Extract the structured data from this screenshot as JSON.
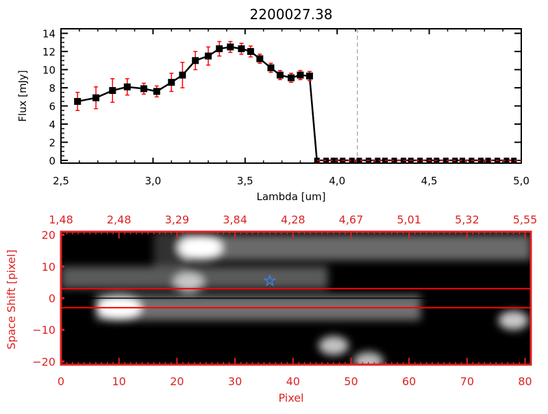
{
  "chart_data": [
    {
      "type": "line",
      "title": "2200027.38",
      "xlabel": "Lambda [um]",
      "ylabel": "Flux [mJy]",
      "xlim": [
        2.5,
        5.0
      ],
      "ylim": [
        -0.3,
        14.5
      ],
      "xticks": [
        "2.5",
        "3.0",
        "3.5",
        "4.0",
        "4.5",
        "5.0"
      ],
      "yticks": [
        "0",
        "2",
        "4",
        "6",
        "8",
        "10",
        "12",
        "14"
      ],
      "series": [
        {
          "color": "#000000",
          "error_color": "#ff0000",
          "x": [
            2.59,
            2.69,
            2.78,
            2.86,
            2.95,
            3.02,
            3.1,
            3.16,
            3.23,
            3.3,
            3.36,
            3.42,
            3.48,
            3.53,
            3.58,
            3.64,
            3.69,
            3.75,
            3.8,
            3.85
          ],
          "y": [
            6.5,
            6.9,
            7.7,
            8.1,
            7.9,
            7.6,
            8.6,
            9.4,
            11.0,
            11.5,
            12.3,
            12.5,
            12.3,
            12.0,
            11.2,
            10.2,
            9.4,
            9.1,
            9.4,
            9.3
          ],
          "err": [
            1.0,
            1.2,
            1.3,
            0.9,
            0.6,
            0.6,
            1.0,
            1.4,
            1.0,
            1.0,
            0.8,
            0.6,
            0.6,
            0.6,
            0.5,
            0.5,
            0.5,
            0.5,
            0.5,
            0.5
          ]
        },
        {
          "color": "#000000",
          "x": [
            3.89,
            3.94,
            3.98,
            4.03,
            4.08,
            4.12,
            4.17,
            4.22,
            4.26,
            4.31,
            4.36,
            4.4,
            4.45,
            4.5,
            4.54,
            4.59,
            4.64,
            4.68,
            4.73,
            4.78,
            4.82,
            4.87,
            4.92,
            4.96
          ],
          "y": [
            0,
            0,
            0,
            0,
            0,
            0,
            0,
            0,
            0,
            0,
            0,
            0,
            0,
            0,
            0,
            0,
            0,
            0,
            0,
            0,
            0,
            0,
            0,
            0
          ]
        }
      ],
      "zero_line": {
        "color": "#ff0000",
        "style": "dashed"
      },
      "vertical_marker": {
        "x": 4.11,
        "style": "dashed",
        "color": "#888888"
      }
    },
    {
      "type": "heatmap",
      "xlabel": "Pixel",
      "ylabel": "Space Shift [pixel]",
      "xlim": [
        0,
        81
      ],
      "ylim": [
        -21,
        21
      ],
      "xticks": [
        "0",
        "10",
        "20",
        "30",
        "40",
        "50",
        "60",
        "70",
        "80"
      ],
      "yticks": [
        "-20",
        "-10",
        "0",
        "10",
        "20"
      ],
      "top_ticks": [
        "1.48",
        "2.48",
        "3.29",
        "3.84",
        "4.28",
        "4.67",
        "5.01",
        "5.32",
        "5.55"
      ],
      "axis_color": "#dd2222",
      "colormap": "grayscale",
      "hlines": [
        {
          "y": 3,
          "color": "#ff0000"
        },
        {
          "y": 0,
          "color": "#000000"
        },
        {
          "y": -3,
          "color": "#ff0000"
        }
      ],
      "marker": {
        "x": 36,
        "y": 5.5,
        "symbol": "star",
        "color": "#3388ff"
      },
      "blobs": [
        {
          "x": 24,
          "y": 16,
          "intensity": 1.0
        },
        {
          "x": 10,
          "y": -3,
          "intensity": 1.0
        },
        {
          "x": 22,
          "y": 5,
          "intensity": 0.6
        },
        {
          "x": 47,
          "y": -15,
          "intensity": 0.55
        },
        {
          "x": 78,
          "y": -7,
          "intensity": 0.6
        },
        {
          "x": 53,
          "y": -20,
          "intensity": 0.5
        }
      ]
    }
  ]
}
